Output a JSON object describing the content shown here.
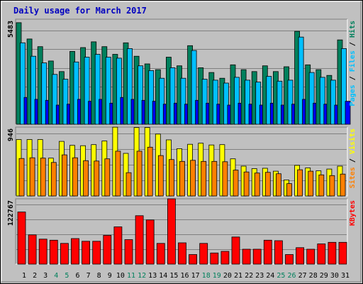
{
  "chart_data": [
    {
      "type": "bar",
      "title": "Daily usage for March 2017",
      "max_label": "5483",
      "side_label": [
        "Pages",
        "Files",
        "Hits"
      ],
      "categories": [
        "1",
        "2",
        "3",
        "4",
        "5",
        "6",
        "7",
        "8",
        "9",
        "10",
        "11",
        "12",
        "13",
        "14",
        "15",
        "16",
        "17",
        "18",
        "19",
        "20",
        "21",
        "22",
        "23",
        "24",
        "25",
        "26",
        "27",
        "28",
        "29",
        "30",
        "31"
      ],
      "weekend_days": [
        "4",
        "5",
        "11",
        "12",
        "18",
        "19",
        "25",
        "26"
      ],
      "ylim": [
        0,
        5483
      ],
      "series": [
        {
          "name": "Hits",
          "color": "#00805c",
          "values": [
            5300,
            4450,
            4050,
            3300,
            2750,
            3800,
            4000,
            4300,
            4050,
            3650,
            4250,
            3550,
            3150,
            2850,
            3500,
            3050,
            4100,
            2950,
            2700,
            2400,
            3100,
            2850,
            2750,
            3050,
            2750,
            3000,
            4850,
            3100,
            2850,
            2550,
            4400
          ]
        },
        {
          "name": "Files",
          "color": "#00c0ff",
          "values": [
            4250,
            3550,
            3200,
            2600,
            2350,
            3250,
            3500,
            3650,
            3500,
            3450,
            3950,
            3050,
            2800,
            2400,
            2950,
            2400,
            3850,
            2350,
            2300,
            2150,
            2450,
            2300,
            2200,
            2500,
            2250,
            2300,
            4550,
            2700,
            2450,
            2300,
            3950
          ]
        },
        {
          "name": "Pages",
          "color": "#0000ff",
          "values": [
            1400,
            1300,
            1250,
            1000,
            1050,
            1300,
            1200,
            1300,
            1100,
            1400,
            1300,
            1250,
            1200,
            1050,
            1100,
            1050,
            1250,
            1100,
            1050,
            1000,
            1100,
            1050,
            1000,
            1100,
            1000,
            1050,
            1300,
            1100,
            1050,
            1000,
            1200
          ]
        }
      ]
    },
    {
      "type": "bar",
      "max_label": "946",
      "side_label": [
        "Sites",
        "Visits"
      ],
      "ylim": [
        0,
        946
      ],
      "series": [
        {
          "name": "Visits",
          "color": "#ffff00",
          "values": [
            775,
            775,
            775,
            520,
            750,
            695,
            690,
            705,
            755,
            945,
            585,
            940,
            940,
            850,
            770,
            650,
            710,
            725,
            700,
            705,
            510,
            410,
            375,
            380,
            340,
            220,
            420,
            385,
            345,
            370,
            410
          ]
        },
        {
          "name": "Sites",
          "color": "#ff8000",
          "values": [
            515,
            525,
            520,
            460,
            565,
            525,
            485,
            480,
            510,
            615,
            320,
            615,
            670,
            555,
            500,
            475,
            490,
            475,
            475,
            470,
            355,
            330,
            315,
            325,
            305,
            170,
            360,
            340,
            290,
            280,
            300
          ]
        }
      ]
    },
    {
      "type": "bar",
      "max_label": "122767",
      "side_label": [
        "KBytes"
      ],
      "ylim": [
        0,
        122767
      ],
      "series": [
        {
          "name": "KBytes",
          "color": "#ff0000",
          "values": [
            98000,
            55000,
            47000,
            45000,
            39000,
            48000,
            43000,
            43000,
            54000,
            70000,
            46000,
            91000,
            83000,
            39000,
            122767,
            40000,
            18000,
            39000,
            21000,
            24000,
            51000,
            28000,
            28000,
            45000,
            44000,
            18000,
            31000,
            28000,
            38000,
            41000,
            41000
          ]
        }
      ]
    }
  ]
}
